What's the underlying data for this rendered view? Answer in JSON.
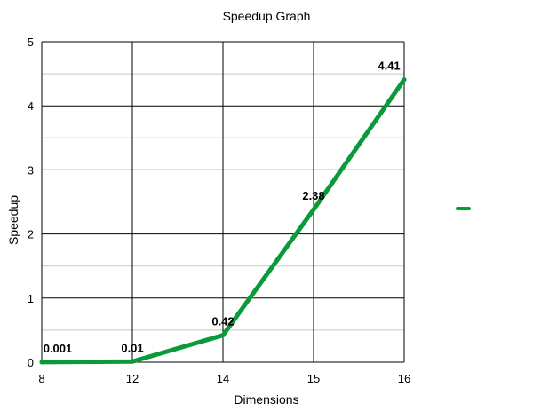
{
  "chart_data": {
    "type": "line",
    "title": "Speedup Graph",
    "xlabel": "Dimensions",
    "ylabel": "Speedup",
    "categories": [
      "8",
      "12",
      "14",
      "15",
      "16"
    ],
    "series": [
      {
        "values": [
          0.001,
          0.01,
          0.42,
          2.38,
          4.41
        ],
        "labels": [
          "0.001",
          "0.01",
          "0.42",
          "2.38",
          "4.41"
        ],
        "color": "#0a9a3a"
      }
    ],
    "ylim": [
      0,
      5
    ],
    "y_ticks": [
      "0",
      "1",
      "2",
      "3",
      "4",
      "5"
    ],
    "grid": true,
    "legend": "right"
  }
}
